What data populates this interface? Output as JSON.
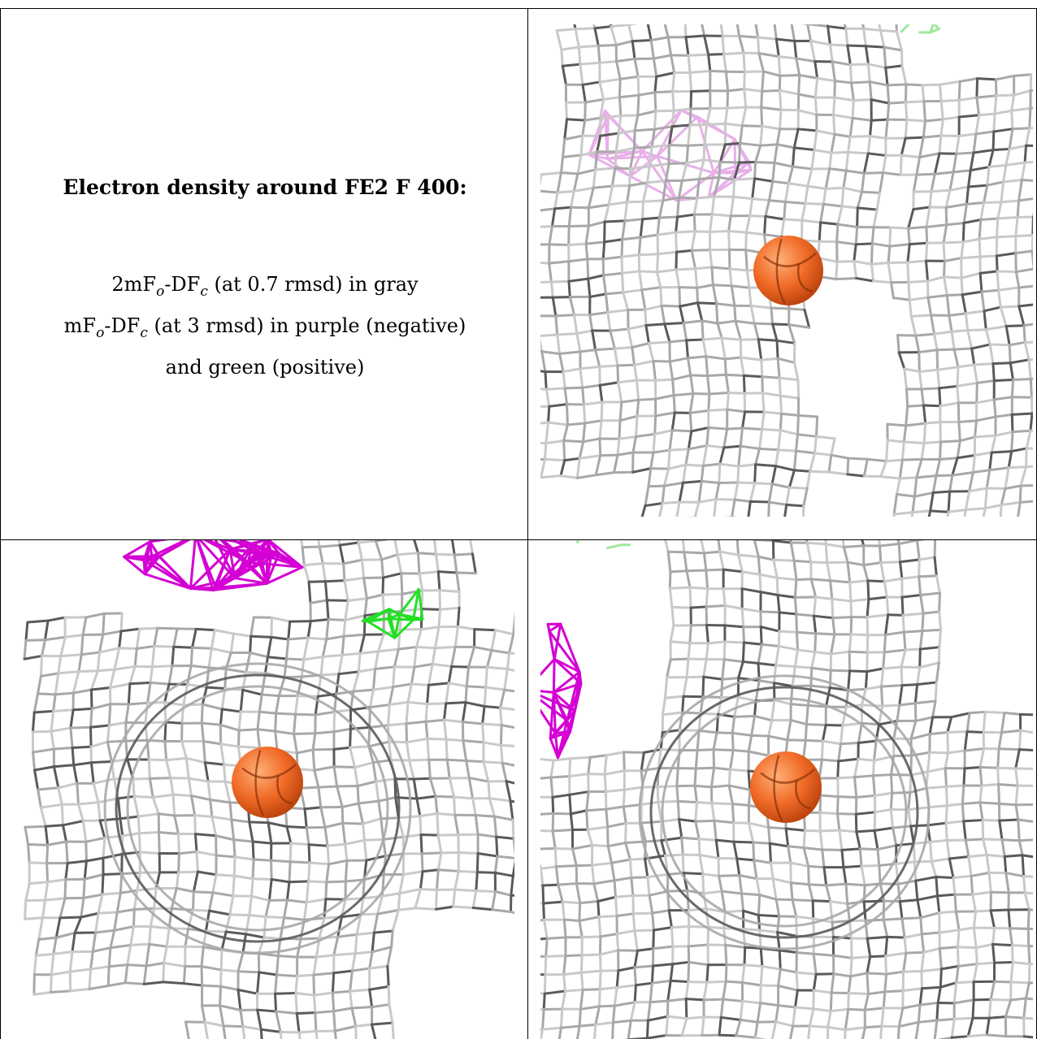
{
  "title": "Electron density around FE2 F 400:",
  "legend": {
    "line1": {
      "pre": "2mF",
      "sub1": "o",
      "mid": "-DF",
      "sub2": "c",
      "post": " (at 0.7 rmsd) in gray"
    },
    "line2": {
      "pre": "mF",
      "sub1": "o",
      "mid": "-DF",
      "sub2": "c",
      "post": " (at 3 rmsd) in purple (negative)"
    },
    "line3": "and green (positive)"
  },
  "colors": {
    "map_gray": "#a8a8a8",
    "map_dark": "#5a5a5a",
    "negative_purple": "#d400d4",
    "positive_green": "#22e022",
    "atom_orange": "#f06a26"
  },
  "panels": [
    {
      "name": "view-1",
      "atom": "FE2"
    },
    {
      "name": "view-2",
      "atom": "FE2"
    },
    {
      "name": "view-3",
      "atom": "FE2"
    }
  ]
}
